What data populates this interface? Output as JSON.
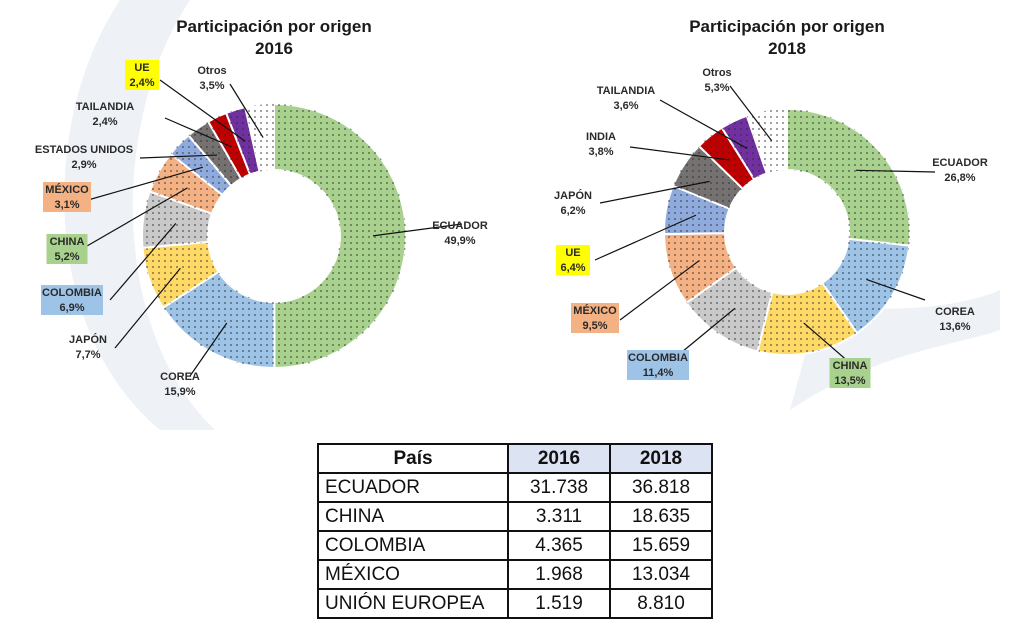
{
  "chart_data": [
    {
      "type": "pie",
      "title_line1": "Participación por origen",
      "title_line2": "2016",
      "slices": [
        {
          "label": "ECUADOR",
          "pct_label": "49,9%",
          "value": 49.9,
          "color": "#a8d18d",
          "pattern": "dots"
        },
        {
          "label": "COREA",
          "pct_label": "15,9%",
          "value": 15.9,
          "color": "#9dc3e6",
          "pattern": "dots"
        },
        {
          "label": "JAPÓN",
          "pct_label": "7,7%",
          "value": 7.7,
          "color": "#ffd966",
          "pattern": "dots"
        },
        {
          "label": "COLOMBIA",
          "pct_label": "6,9%",
          "value": 6.9,
          "color": "#c9c9c9",
          "pattern": "dots",
          "highlight": "#9dc3e6"
        },
        {
          "label": "CHINA",
          "pct_label": "5,2%",
          "value": 5.2,
          "color": "#f4b183",
          "pattern": "dots",
          "highlight": "#a8d18d"
        },
        {
          "label": "MÉXICO",
          "pct_label": "3,1%",
          "value": 3.1,
          "color": "#8faadc",
          "pattern": "dots",
          "highlight": "#f4b183"
        },
        {
          "label": "ESTADOS UNIDOS",
          "pct_label": "2,9%",
          "value": 2.9,
          "color": "#767171",
          "pattern": "dots"
        },
        {
          "label": "TAILANDIA",
          "pct_label": "2,4%",
          "value": 2.4,
          "color": "#c00000",
          "pattern": "dots"
        },
        {
          "label": "UE",
          "pct_label": "2,4%",
          "value": 2.4,
          "color": "#7030a0",
          "pattern": "dots",
          "highlight": "#ffff00"
        },
        {
          "label": "Otros",
          "pct_label": "3,5%",
          "value": 3.5,
          "color": "#ffffff",
          "pattern": "dots"
        }
      ]
    },
    {
      "type": "pie",
      "title_line1": "Participación por origen",
      "title_line2": "2018",
      "slices": [
        {
          "label": "ECUADOR",
          "pct_label": "26,8%",
          "value": 26.8,
          "color": "#a8d18d",
          "pattern": "dots"
        },
        {
          "label": "COREA",
          "pct_label": "13,6%",
          "value": 13.6,
          "color": "#9dc3e6",
          "pattern": "dots"
        },
        {
          "label": "CHINA",
          "pct_label": "13,5%",
          "value": 13.5,
          "color": "#ffd966",
          "pattern": "dots",
          "highlight": "#a8d18d"
        },
        {
          "label": "COLOMBIA",
          "pct_label": "11,4%",
          "value": 11.4,
          "color": "#c9c9c9",
          "pattern": "dots",
          "highlight": "#9dc3e6"
        },
        {
          "label": "MÉXICO",
          "pct_label": "9,5%",
          "value": 9.5,
          "color": "#f4b183",
          "pattern": "dots",
          "highlight": "#f4b183"
        },
        {
          "label": "UE",
          "pct_label": "6,4%",
          "value": 6.4,
          "color": "#8faadc",
          "pattern": "dots",
          "highlight": "#ffff00"
        },
        {
          "label": "JAPÓN",
          "pct_label": "6,2%",
          "value": 6.2,
          "color": "#767171",
          "pattern": "dots"
        },
        {
          "label": "INDIA",
          "pct_label": "3,8%",
          "value": 3.8,
          "color": "#c00000",
          "pattern": "dots"
        },
        {
          "label": "TAILANDIA",
          "pct_label": "3,6%",
          "value": 3.6,
          "color": "#7030a0",
          "pattern": "dots"
        },
        {
          "label": "Otros",
          "pct_label": "5,3%",
          "value": 5.3,
          "color": "#ffffff",
          "pattern": "dots"
        }
      ]
    },
    {
      "type": "table",
      "columns": [
        "País",
        "2016",
        "2018"
      ],
      "rows": [
        [
          "ECUADOR",
          "31.738",
          "36.818"
        ],
        [
          "CHINA",
          "3.311",
          "18.635"
        ],
        [
          "COLOMBIA",
          "4.365",
          "15.659"
        ],
        [
          "MÉXICO",
          "1.968",
          "13.034"
        ],
        [
          "UNIÓN EUROPEA",
          "1.519",
          "8.810"
        ]
      ]
    }
  ]
}
